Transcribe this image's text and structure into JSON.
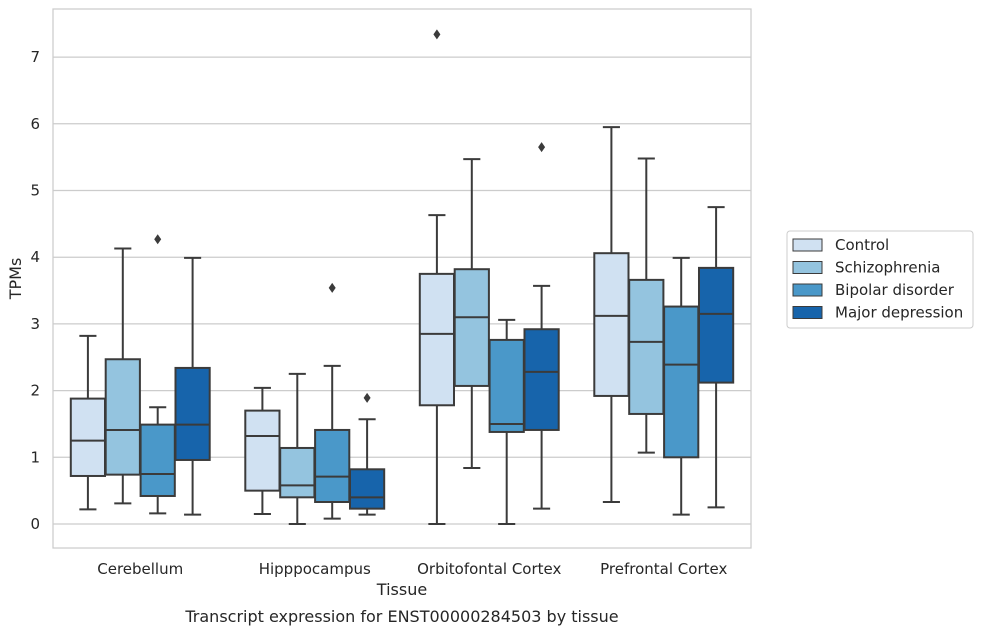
{
  "chart_data": {
    "type": "boxplot",
    "title": "",
    "xlabel": "Tissue",
    "ylabel": "TPMs",
    "caption": "Transcript expression for ENST00000284503 by tissue",
    "ylim": [
      -0.35,
      7.7
    ],
    "yticks": [
      0,
      1,
      2,
      3,
      4,
      5,
      6,
      7
    ],
    "grid": "horizontal",
    "legend_position": "right",
    "categories": [
      "Cerebellum",
      "Hipppocampus",
      "Orbitofontal Cortex",
      "Prefrontal Cortex"
    ],
    "series": [
      {
        "name": "Control",
        "color": "#d0e1f2",
        "boxes": [
          {
            "whislo": 0.22,
            "q1": 0.72,
            "med": 1.25,
            "q3": 1.88,
            "whishi": 2.82,
            "fliers": []
          },
          {
            "whislo": 0.15,
            "q1": 0.5,
            "med": 1.32,
            "q3": 1.7,
            "whishi": 2.04,
            "fliers": []
          },
          {
            "whislo": 0.0,
            "q1": 1.78,
            "med": 2.85,
            "q3": 3.75,
            "whishi": 4.63,
            "fliers": [
              7.34
            ]
          },
          {
            "whislo": 0.33,
            "q1": 1.92,
            "med": 3.12,
            "q3": 4.06,
            "whishi": 5.95,
            "fliers": []
          }
        ]
      },
      {
        "name": "Schizophrenia",
        "color": "#94c4df",
        "boxes": [
          {
            "whislo": 0.31,
            "q1": 0.74,
            "med": 1.41,
            "q3": 2.47,
            "whishi": 4.13,
            "fliers": []
          },
          {
            "whislo": 0.0,
            "q1": 0.4,
            "med": 0.58,
            "q3": 1.14,
            "whishi": 2.25,
            "fliers": []
          },
          {
            "whislo": 0.84,
            "q1": 2.07,
            "med": 3.1,
            "q3": 3.82,
            "whishi": 5.47,
            "fliers": []
          },
          {
            "whislo": 1.07,
            "q1": 1.65,
            "med": 2.73,
            "q3": 3.66,
            "whishi": 5.48,
            "fliers": []
          }
        ]
      },
      {
        "name": "Bipolar disorder",
        "color": "#4a98c9",
        "boxes": [
          {
            "whislo": 0.16,
            "q1": 0.42,
            "med": 0.75,
            "q3": 1.49,
            "whishi": 1.75,
            "fliers": [
              4.27
            ]
          },
          {
            "whislo": 0.08,
            "q1": 0.33,
            "med": 0.71,
            "q3": 1.41,
            "whishi": 2.37,
            "fliers": [
              3.54
            ]
          },
          {
            "whislo": 0.0,
            "q1": 1.38,
            "med": 1.5,
            "q3": 2.76,
            "whishi": 3.06,
            "fliers": []
          },
          {
            "whislo": 0.14,
            "q1": 1.0,
            "med": 2.39,
            "q3": 3.26,
            "whishi": 3.99,
            "fliers": []
          }
        ]
      },
      {
        "name": "Major depression",
        "color": "#1764ab",
        "boxes": [
          {
            "whislo": 0.14,
            "q1": 0.96,
            "med": 1.49,
            "q3": 2.34,
            "whishi": 3.99,
            "fliers": []
          },
          {
            "whislo": 0.14,
            "q1": 0.23,
            "med": 0.4,
            "q3": 0.82,
            "whishi": 1.57,
            "fliers": [
              1.89
            ]
          },
          {
            "whislo": 0.23,
            "q1": 1.41,
            "med": 2.28,
            "q3": 2.92,
            "whishi": 3.57,
            "fliers": [
              5.65
            ]
          },
          {
            "whislo": 0.25,
            "q1": 2.12,
            "med": 3.15,
            "q3": 3.84,
            "whishi": 4.75,
            "fliers": []
          }
        ]
      }
    ]
  }
}
